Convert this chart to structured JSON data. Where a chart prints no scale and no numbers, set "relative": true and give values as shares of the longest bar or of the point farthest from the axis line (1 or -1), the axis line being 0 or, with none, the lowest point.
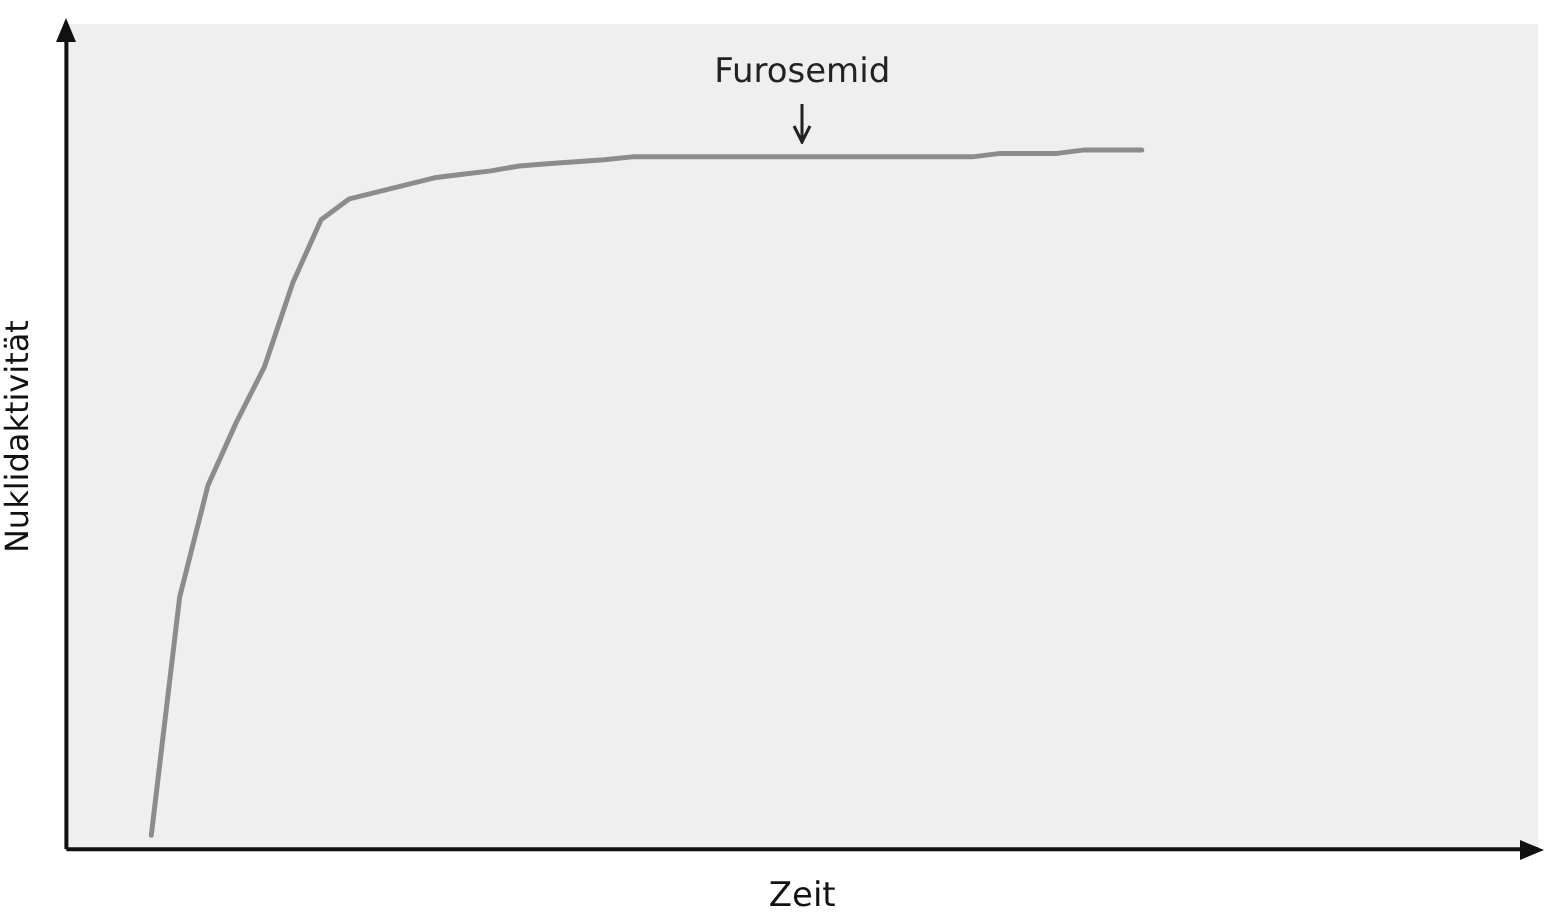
{
  "chart_data": {
    "type": "line",
    "xlabel": "Zeit",
    "ylabel": "Nuklidaktivität",
    "relative": true,
    "color": "#8c8c8c",
    "grid": false,
    "legend": false,
    "marker": "none",
    "line_style": "solid",
    "categories": [
      null,
      null,
      null,
      null,
      null,
      null,
      null,
      null,
      null,
      null,
      null,
      null,
      null,
      null,
      null,
      null,
      null,
      null,
      null,
      null,
      null,
      null,
      null,
      null,
      null,
      null,
      null,
      null,
      null,
      null,
      null,
      null,
      null,
      null,
      null,
      null,
      null,
      null,
      null,
      null,
      null,
      null,
      null,
      null,
      null,
      null,
      null,
      null,
      null,
      null,
      null,
      null,
      null
    ],
    "values": [
      null,
      null,
      null,
      0.02,
      0.36,
      0.52,
      0.61,
      0.69,
      0.81,
      0.9,
      0.93,
      0.94,
      0.95,
      0.96,
      0.965,
      0.97,
      0.977,
      0.98,
      0.983,
      0.986,
      0.99,
      0.99,
      0.99,
      0.99,
      0.99,
      0.99,
      0.99,
      0.99,
      0.99,
      0.99,
      0.99,
      0.99,
      0.99,
      0.995,
      0.995,
      0.995,
      1,
      1,
      1,
      null,
      null,
      null,
      null,
      null,
      null,
      null,
      null,
      null,
      null,
      null,
      null,
      null,
      null
    ],
    "annotations": [
      "Furosemid"
    ]
  }
}
